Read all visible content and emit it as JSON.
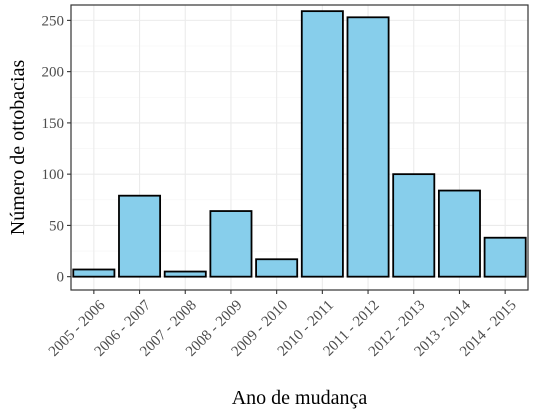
{
  "chart_data": {
    "type": "bar",
    "categories": [
      "2005 - 2006",
      "2006 - 2007",
      "2007 - 2008",
      "2008 - 2009",
      "2009 - 2010",
      "2010 - 2011",
      "2011 - 2012",
      "2012 - 2013",
      "2013 - 2014",
      "2014 - 2015"
    ],
    "values": [
      7,
      79,
      5,
      64,
      17,
      259,
      253,
      100,
      84,
      38
    ],
    "xlabel": "Ano de mudança",
    "ylabel": "Número de ottobacias",
    "ylim": [
      -13,
      265
    ],
    "yticks": [
      0,
      50,
      100,
      150,
      200,
      250
    ],
    "grid": true,
    "colors": {
      "bar_fill": "#87ceeb",
      "bar_stroke": "#000000",
      "grid_major": "#ebebeb",
      "grid_minor": "#f5f5f5",
      "panel_border": "#333333"
    }
  }
}
